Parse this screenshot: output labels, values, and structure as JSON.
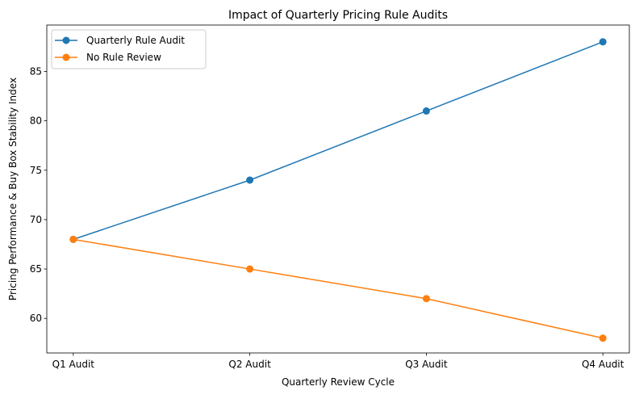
{
  "chart_data": {
    "type": "line",
    "title": "Impact of Quarterly Pricing Rule Audits",
    "xlabel": "Quarterly Review Cycle",
    "ylabel": "Pricing Performance & Buy Box Stability Index",
    "categories": [
      "Q1 Audit",
      "Q2 Audit",
      "Q3 Audit",
      "Q4 Audit"
    ],
    "series": [
      {
        "name": "Quarterly Rule Audit",
        "values": [
          68,
          74,
          81,
          88
        ],
        "color": "#1f77b4"
      },
      {
        "name": "No Rule Review",
        "values": [
          68,
          65,
          62,
          58
        ],
        "color": "#ff7f0e"
      }
    ],
    "yticks": [
      60,
      65,
      70,
      75,
      80,
      85
    ],
    "ylim": [
      56.5,
      89.7
    ],
    "grid": false,
    "legend": "top-left"
  }
}
